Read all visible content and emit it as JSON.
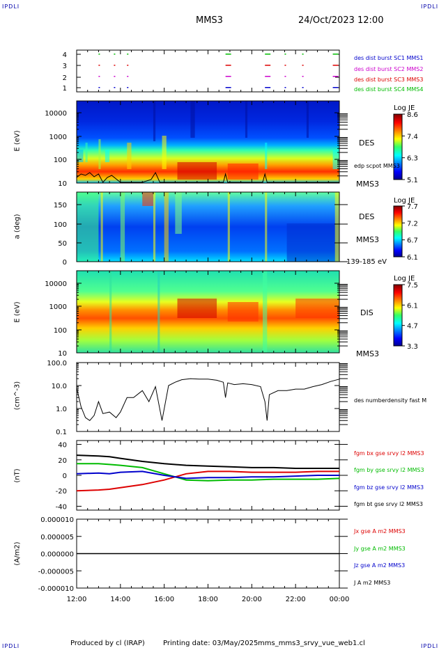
{
  "header": {
    "corner_tl": "IPDLI",
    "corner_tr": "IPDLI",
    "spacecraft": "MMS3",
    "datetime": "24/Oct/2023 12:00",
    "corner_bl": "IPDLI",
    "corner_br": "IPDLI"
  },
  "footer": {
    "produced": "Produced by cl (IRAP)",
    "printing": "Printing date: 03/May/2025",
    "script": "mms_mms3_srvy_vue_web1.cl"
  },
  "colors": {
    "blue": "#0000cc",
    "magenta": "#cc00cc",
    "red": "#dd0000",
    "green": "#00bb00",
    "black": "#000000"
  },
  "chart_data": [
    {
      "type": "scatter",
      "name": "burst-availability",
      "yticks": [
        "1",
        "2",
        "3",
        "4"
      ],
      "legend": [
        {
          "label": "des dist burst SC1 MMS1",
          "color": "#0000cc"
        },
        {
          "label": "des dist burst SC2 MMS2",
          "color": "#cc00cc"
        },
        {
          "label": "des dist burst SC3 MMS3",
          "color": "#dd0000"
        },
        {
          "label": "des dist burst SC4 MMS4",
          "color": "#00bb00"
        }
      ],
      "burst_times_h": [
        13.0,
        13.7,
        14.3,
        18.8,
        20.6,
        21.5,
        22.3,
        23.7
      ]
    },
    {
      "type": "heatmap",
      "name": "des-energy-spectrogram",
      "ylabel": "E (eV)",
      "yticks": [
        "10",
        "100",
        "1000",
        "10000"
      ],
      "ylim": [
        10,
        30000
      ],
      "yscale": "log",
      "label": "DES",
      "overlay_label": "edp scpot MMS3",
      "sc_label": "MMS3",
      "colorbar": {
        "title": "Log JE",
        "ticks": [
          "8.6",
          "7.4",
          "6.3",
          "5.1"
        ]
      }
    },
    {
      "type": "heatmap",
      "name": "des-pitch-angle",
      "ylabel": "a (deg)",
      "yticks": [
        "0",
        "50",
        "100",
        "150"
      ],
      "ylim": [
        0,
        180
      ],
      "label": "DES",
      "sc_label": "MMS3",
      "energy_range": "139-185 eV",
      "colorbar": {
        "title": "Log JE",
        "ticks": [
          "7.7",
          "7.2",
          "6.7",
          "6.1"
        ]
      }
    },
    {
      "type": "heatmap",
      "name": "dis-energy-spectrogram",
      "ylabel": "E (eV)",
      "yticks": [
        "10",
        "100",
        "1000",
        "10000"
      ],
      "ylim": [
        10,
        30000
      ],
      "yscale": "log",
      "label": "DIS",
      "sc_label": "MMS3",
      "colorbar": {
        "title": "Log JE",
        "ticks": [
          "7.5",
          "6.1",
          "4.7",
          "3.3"
        ]
      }
    },
    {
      "type": "line",
      "name": "number-density",
      "ylabel": "(cm^-3)",
      "yticks": [
        "0.1",
        "1.0",
        "10.0",
        "100.0"
      ],
      "ylim": [
        0.1,
        100
      ],
      "yscale": "log",
      "series": [
        {
          "name": "des numberdensity fast M",
          "color": "#000000",
          "x": [
            12.0,
            12.2,
            12.4,
            12.6,
            12.8,
            13.0,
            13.2,
            13.5,
            13.8,
            14.0,
            14.3,
            14.6,
            15.0,
            15.3,
            15.6,
            15.9,
            16.2,
            16.5,
            16.8,
            17.2,
            17.6,
            18.0,
            18.4,
            18.7,
            18.8,
            18.9,
            19.2,
            19.6,
            20.0,
            20.4,
            20.6,
            20.7,
            20.8,
            21.2,
            21.6,
            22.0,
            22.4,
            22.8,
            23.2,
            23.6,
            24.0
          ],
          "y": [
            8,
            1.2,
            0.4,
            0.3,
            0.5,
            2,
            0.6,
            0.7,
            0.4,
            0.7,
            3,
            3,
            6,
            2,
            9,
            0.3,
            10,
            14,
            18,
            20,
            19,
            19,
            17,
            14,
            3,
            13,
            11,
            12,
            11,
            9,
            2,
            0.3,
            4,
            6,
            6,
            7,
            7,
            9,
            11,
            15,
            19
          ]
        }
      ]
    },
    {
      "type": "line",
      "name": "magnetic-field",
      "ylabel": "(nT)",
      "yticks": [
        "-40",
        "-20",
        "0",
        "20",
        "40"
      ],
      "ylim": [
        -45,
        45
      ],
      "series": [
        {
          "name": "fgm bx gse srvy l2 MMS3",
          "color": "#dd0000",
          "x": [
            12.0,
            13.0,
            13.5,
            14.0,
            15.0,
            16.0,
            17.0,
            18.0,
            19.0,
            20.0,
            21.0,
            22.0,
            23.0,
            24.0
          ],
          "y": [
            -20,
            -19,
            -18,
            -16,
            -12,
            -6,
            2,
            5,
            5,
            4,
            4,
            4,
            5,
            5
          ]
        },
        {
          "name": "fgm by gse srvy l2 MMS3",
          "color": "#00bb00",
          "x": [
            12.0,
            13.0,
            13.5,
            14.0,
            15.0,
            16.0,
            17.0,
            18.0,
            19.0,
            20.0,
            21.0,
            22.0,
            23.0,
            24.0
          ],
          "y": [
            15,
            15,
            14,
            13,
            10,
            2,
            -6,
            -7,
            -6,
            -6,
            -5,
            -5,
            -5,
            -4
          ]
        },
        {
          "name": "fgm bz gse srvy l2 MMS3",
          "color": "#0000cc",
          "x": [
            12.0,
            13.0,
            13.5,
            14.0,
            15.0,
            16.0,
            17.0,
            18.0,
            19.0,
            20.0,
            21.0,
            22.0,
            23.0,
            24.0
          ],
          "y": [
            2,
            3,
            2,
            4,
            5,
            0,
            -4,
            -3,
            -3,
            -2,
            -2,
            -1,
            0,
            0
          ]
        },
        {
          "name": "fgm bt gse srvy l2 MMS3",
          "color": "#000000",
          "x": [
            12.0,
            13.0,
            13.5,
            14.0,
            15.0,
            16.0,
            17.0,
            18.0,
            19.0,
            20.0,
            21.0,
            22.0,
            23.0,
            24.0
          ],
          "y": [
            26,
            25,
            24,
            22,
            18,
            15,
            13,
            12,
            11,
            10,
            10,
            9,
            9,
            9
          ]
        }
      ]
    },
    {
      "type": "line",
      "name": "current-density",
      "ylabel": "(A/m2)",
      "yticks": [
        "-0.000010",
        "-0.000005",
        "0.000000",
        "0.000005",
        "0.000010"
      ],
      "ylim": [
        -1e-05,
        1e-05
      ],
      "series": [
        {
          "name": "Jx gse A m2 MMS3",
          "color": "#dd0000"
        },
        {
          "name": "Jy gse A m2 MMS3",
          "color": "#00bb00"
        },
        {
          "name": "Jz gse A m2 MMS3",
          "color": "#0000cc"
        },
        {
          "name": "J A m2 MMS3",
          "color": "#000000"
        }
      ],
      "x": [
        12.0,
        24.0
      ],
      "y": [
        0,
        0
      ]
    }
  ],
  "time_axis": {
    "ticks": [
      "12:00",
      "14:00",
      "16:00",
      "18:00",
      "20:00",
      "22:00",
      "00:00"
    ],
    "range_h": [
      12,
      24
    ]
  }
}
